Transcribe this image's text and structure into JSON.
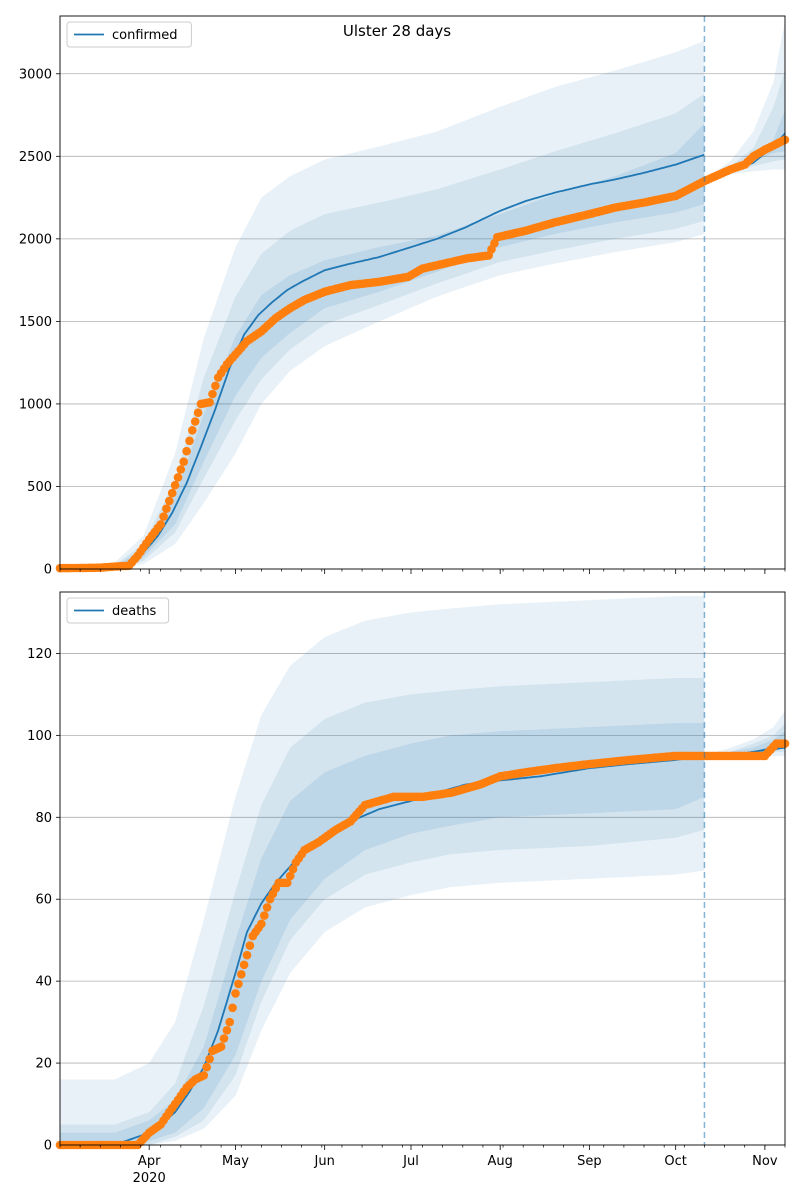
{
  "figure": {
    "title": "Ulster 28 days"
  },
  "chart_data": [
    {
      "type": "line",
      "title": "Ulster 28 days",
      "legend": [
        "confirmed"
      ],
      "legend_position": "top-left",
      "grid": "horizontal",
      "xlim": [
        "2020-03-01",
        "2020-11-08"
      ],
      "ylim": [
        0,
        3350
      ],
      "x_ticks": [
        {
          "date": "2020-04-01",
          "label": "Apr",
          "sub": "2020"
        },
        {
          "date": "2020-05-01",
          "label": "May"
        },
        {
          "date": "2020-06-01",
          "label": "Jun"
        },
        {
          "date": "2020-07-01",
          "label": "Jul"
        },
        {
          "date": "2020-08-01",
          "label": "Aug"
        },
        {
          "date": "2020-09-01",
          "label": "Sep"
        },
        {
          "date": "2020-10-01",
          "label": "Oct"
        },
        {
          "date": "2020-11-01",
          "label": "Nov"
        }
      ],
      "y_ticks": [
        0,
        500,
        1000,
        1500,
        2000,
        2500,
        3000
      ],
      "forecast_start": "2020-10-11",
      "series": [
        {
          "name": "confirmed",
          "kind": "model_median",
          "color": "#1f77b4",
          "x": [
            "2020-03-01",
            "2020-03-10",
            "2020-03-15",
            "2020-03-20",
            "2020-03-25",
            "2020-03-30",
            "2020-04-04",
            "2020-04-09",
            "2020-04-14",
            "2020-04-19",
            "2020-04-24",
            "2020-04-29",
            "2020-05-04",
            "2020-05-09",
            "2020-05-14",
            "2020-05-19",
            "2020-05-24",
            "2020-06-01",
            "2020-06-10",
            "2020-06-20",
            "2020-07-01",
            "2020-07-10",
            "2020-07-20",
            "2020-08-01",
            "2020-08-10",
            "2020-08-20",
            "2020-09-01",
            "2020-09-10",
            "2020-09-20",
            "2020-10-01",
            "2020-10-11"
          ],
          "y": [
            0,
            2,
            5,
            15,
            40,
            100,
            200,
            340,
            520,
            740,
            970,
            1220,
            1420,
            1540,
            1620,
            1690,
            1740,
            1810,
            1850,
            1890,
            1950,
            2000,
            2070,
            2170,
            2230,
            2280,
            2330,
            2360,
            2400,
            2450,
            2510
          ]
        },
        {
          "name": "",
          "kind": "observed",
          "color": "#ff7f0e",
          "x": [
            "2020-03-01",
            "2020-03-15",
            "2020-03-20",
            "2020-03-25",
            "2020-03-28",
            "2020-04-01",
            "2020-04-05",
            "2020-04-09",
            "2020-04-13",
            "2020-04-16",
            "2020-04-19",
            "2020-04-22",
            "2020-04-25",
            "2020-04-28",
            "2020-05-01",
            "2020-05-05",
            "2020-05-10",
            "2020-05-15",
            "2020-05-20",
            "2020-05-25",
            "2020-06-01",
            "2020-06-10",
            "2020-06-20",
            "2020-06-30",
            "2020-07-01",
            "2020-07-05",
            "2020-07-10",
            "2020-07-20",
            "2020-07-28",
            "2020-07-31",
            "2020-08-10",
            "2020-08-20",
            "2020-09-01",
            "2020-09-10",
            "2020-09-20",
            "2020-10-01",
            "2020-10-11",
            "2020-10-20",
            "2020-10-25",
            "2020-10-28",
            "2020-11-01",
            "2020-11-08"
          ],
          "y": [
            5,
            8,
            15,
            20,
            80,
            180,
            270,
            460,
            650,
            840,
            1000,
            1010,
            1160,
            1240,
            1300,
            1380,
            1440,
            1520,
            1580,
            1630,
            1680,
            1720,
            1740,
            1770,
            1780,
            1820,
            1840,
            1880,
            1900,
            2010,
            2050,
            2100,
            2150,
            2190,
            2220,
            2260,
            2350,
            2420,
            2450,
            2500,
            2540,
            2600
          ]
        }
      ],
      "bands": {
        "x": [
          "2020-03-01",
          "2020-03-20",
          "2020-03-30",
          "2020-04-10",
          "2020-04-20",
          "2020-05-01",
          "2020-05-10",
          "2020-05-20",
          "2020-06-01",
          "2020-06-20",
          "2020-07-10",
          "2020-08-01",
          "2020-08-20",
          "2020-09-10",
          "2020-10-01",
          "2020-10-11"
        ],
        "outer_lo": [
          0,
          0,
          30,
          150,
          400,
          700,
          1000,
          1200,
          1350,
          1500,
          1650,
          1780,
          1850,
          1920,
          1980,
          2030
        ],
        "outer_hi": [
          10,
          40,
          200,
          700,
          1400,
          1950,
          2250,
          2380,
          2480,
          2560,
          2650,
          2800,
          2920,
          3020,
          3130,
          3200
        ],
        "mid_lo": [
          0,
          0,
          50,
          220,
          550,
          900,
          1150,
          1330,
          1480,
          1600,
          1730,
          1860,
          1930,
          2000,
          2060,
          2110
        ],
        "mid_hi": [
          5,
          25,
          150,
          540,
          1160,
          1650,
          1910,
          2050,
          2150,
          2220,
          2300,
          2420,
          2530,
          2640,
          2760,
          2880
        ],
        "inner_lo": [
          0,
          5,
          70,
          270,
          650,
          1050,
          1280,
          1430,
          1580,
          1680,
          1800,
          1950,
          2030,
          2100,
          2160,
          2210
        ],
        "inner_hi": [
          3,
          20,
          120,
          440,
          940,
          1410,
          1660,
          1780,
          1870,
          1950,
          2020,
          2150,
          2270,
          2380,
          2520,
          2700
        ]
      },
      "forecast_bands": {
        "x": [
          "2020-10-11",
          "2020-10-20",
          "2020-10-28",
          "2020-11-04",
          "2020-11-08"
        ],
        "outer_lo": [
          2360,
          2390,
          2410,
          2420,
          2420
        ],
        "outer_hi": [
          2360,
          2470,
          2650,
          2950,
          3320
        ],
        "mid_lo": [
          2360,
          2400,
          2440,
          2470,
          2480
        ],
        "mid_hi": [
          2360,
          2440,
          2550,
          2800,
          3020
        ],
        "inner_lo": [
          2360,
          2410,
          2470,
          2520,
          2530
        ],
        "inner_hi": [
          2360,
          2420,
          2480,
          2600,
          2780
        ],
        "median": [
          2360,
          2410,
          2460,
          2560,
          2640
        ]
      }
    },
    {
      "type": "line",
      "title": "",
      "legend": [
        "deaths"
      ],
      "legend_position": "top-left",
      "grid": "horizontal",
      "xlim": [
        "2020-03-01",
        "2020-11-08"
      ],
      "ylim": [
        0,
        135
      ],
      "x_ticks": [
        {
          "date": "2020-04-01",
          "label": "Apr",
          "sub": "2020"
        },
        {
          "date": "2020-05-01",
          "label": "May"
        },
        {
          "date": "2020-06-01",
          "label": "Jun"
        },
        {
          "date": "2020-07-01",
          "label": "Jul"
        },
        {
          "date": "2020-08-01",
          "label": "Aug"
        },
        {
          "date": "2020-09-01",
          "label": "Sep"
        },
        {
          "date": "2020-10-01",
          "label": "Oct"
        },
        {
          "date": "2020-11-01",
          "label": "Nov"
        }
      ],
      "y_ticks": [
        0,
        20,
        40,
        60,
        80,
        100,
        120
      ],
      "forecast_start": "2020-10-11",
      "series": [
        {
          "name": "deaths",
          "kind": "model_median",
          "color": "#1f77b4",
          "x": [
            "2020-03-01",
            "2020-03-20",
            "2020-03-28",
            "2020-04-01",
            "2020-04-05",
            "2020-04-10",
            "2020-04-15",
            "2020-04-20",
            "2020-04-25",
            "2020-05-01",
            "2020-05-05",
            "2020-05-10",
            "2020-05-15",
            "2020-05-20",
            "2020-05-25",
            "2020-06-01",
            "2020-06-10",
            "2020-06-20",
            "2020-07-01",
            "2020-07-10",
            "2020-07-20",
            "2020-08-01",
            "2020-08-15",
            "2020-09-01",
            "2020-09-15",
            "2020-10-01",
            "2020-10-11",
            "2020-10-20",
            "2020-10-28",
            "2020-11-08"
          ],
          "y": [
            0,
            0,
            2,
            3,
            5,
            8,
            13,
            19,
            28,
            42,
            52,
            59,
            64,
            68,
            72,
            75,
            79,
            82,
            84,
            86,
            88,
            89,
            90,
            92,
            93,
            94,
            95,
            95,
            96,
            97
          ]
        },
        {
          "name": "",
          "kind": "observed",
          "color": "#ff7f0e",
          "x": [
            "2020-03-01",
            "2020-03-28",
            "2020-04-01",
            "2020-04-05",
            "2020-04-08",
            "2020-04-11",
            "2020-04-14",
            "2020-04-17",
            "2020-04-20",
            "2020-04-23",
            "2020-04-26",
            "2020-04-29",
            "2020-05-01",
            "2020-05-04",
            "2020-05-07",
            "2020-05-10",
            "2020-05-13",
            "2020-05-16",
            "2020-05-19",
            "2020-05-22",
            "2020-05-25",
            "2020-05-30",
            "2020-06-05",
            "2020-06-10",
            "2020-06-15",
            "2020-06-25",
            "2020-07-05",
            "2020-07-15",
            "2020-07-25",
            "2020-08-01",
            "2020-08-10",
            "2020-08-20",
            "2020-09-01",
            "2020-09-15",
            "2020-10-01",
            "2020-10-11",
            "2020-10-20",
            "2020-11-01",
            "2020-11-05",
            "2020-11-08"
          ],
          "y": [
            0,
            0,
            3,
            5,
            8,
            11,
            14,
            16,
            17,
            23,
            24,
            30,
            37,
            44,
            51,
            54,
            60,
            64,
            64,
            69,
            72,
            74,
            77,
            79,
            83,
            85,
            85,
            86,
            88,
            90,
            91,
            92,
            93,
            94,
            95,
            95,
            95,
            95,
            98,
            98
          ]
        }
      ],
      "bands": {
        "x": [
          "2020-03-01",
          "2020-03-20",
          "2020-04-01",
          "2020-04-10",
          "2020-04-20",
          "2020-05-01",
          "2020-05-10",
          "2020-05-20",
          "2020-06-01",
          "2020-06-15",
          "2020-07-01",
          "2020-07-15",
          "2020-08-01",
          "2020-09-01",
          "2020-10-01",
          "2020-10-11"
        ],
        "outer_lo": [
          0,
          0,
          0,
          1,
          4,
          12,
          28,
          42,
          52,
          58,
          61,
          63,
          64,
          65,
          66,
          67
        ],
        "outer_hi": [
          16,
          16,
          20,
          30,
          55,
          85,
          105,
          117,
          124,
          128,
          130,
          131,
          132,
          133,
          134,
          134
        ],
        "mid_lo": [
          0,
          0,
          0,
          2,
          6,
          17,
          35,
          50,
          60,
          66,
          69,
          71,
          72,
          73,
          75,
          77
        ],
        "mid_hi": [
          5,
          5,
          8,
          15,
          34,
          62,
          83,
          97,
          104,
          108,
          110,
          111,
          112,
          113,
          114,
          114
        ],
        "inner_lo": [
          0,
          0,
          1,
          3,
          9,
          22,
          40,
          55,
          65,
          72,
          76,
          78,
          80,
          81,
          82,
          85
        ],
        "inner_hi": [
          3,
          3,
          6,
          11,
          24,
          50,
          70,
          84,
          91,
          95,
          98,
          100,
          101,
          102,
          103,
          103
        ]
      },
      "forecast_bands": {
        "x": [
          "2020-10-11",
          "2020-10-20",
          "2020-10-28",
          "2020-11-04",
          "2020-11-08"
        ],
        "outer_lo": [
          95,
          95,
          95,
          95,
          95
        ],
        "outer_hi": [
          95,
          97,
          99,
          102,
          106
        ],
        "mid_lo": [
          95,
          95,
          95,
          96,
          96
        ],
        "mid_hi": [
          95,
          96,
          98,
          100,
          103
        ],
        "inner_lo": [
          95,
          95,
          96,
          96,
          97
        ],
        "inner_hi": [
          95,
          96,
          97,
          99,
          101
        ],
        "median": [
          95,
          95,
          96,
          97,
          97
        ]
      }
    }
  ]
}
